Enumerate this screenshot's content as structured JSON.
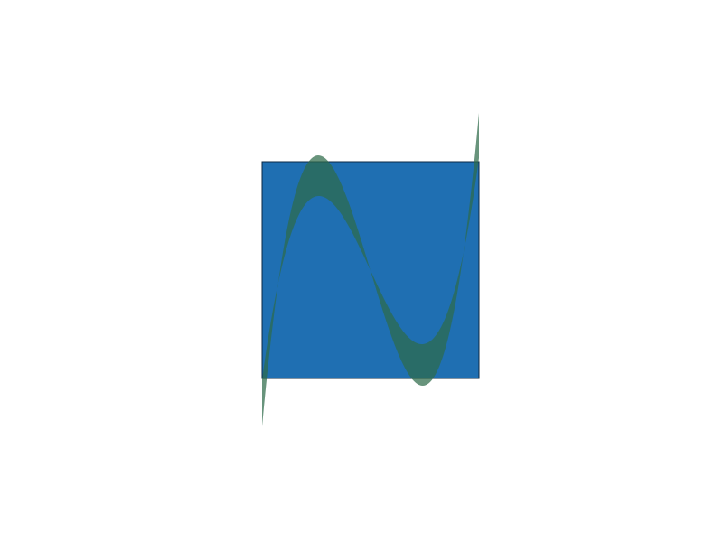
{
  "colors": {
    "background": "#ffffff",
    "square_fill": "#1f6fb2",
    "square_stroke": "#0b2a45",
    "band_fill": "#2e6b4a",
    "band_opacity": 0.72
  },
  "shapes": {
    "square": "filled-square",
    "band": "cubic-curve-band"
  }
}
